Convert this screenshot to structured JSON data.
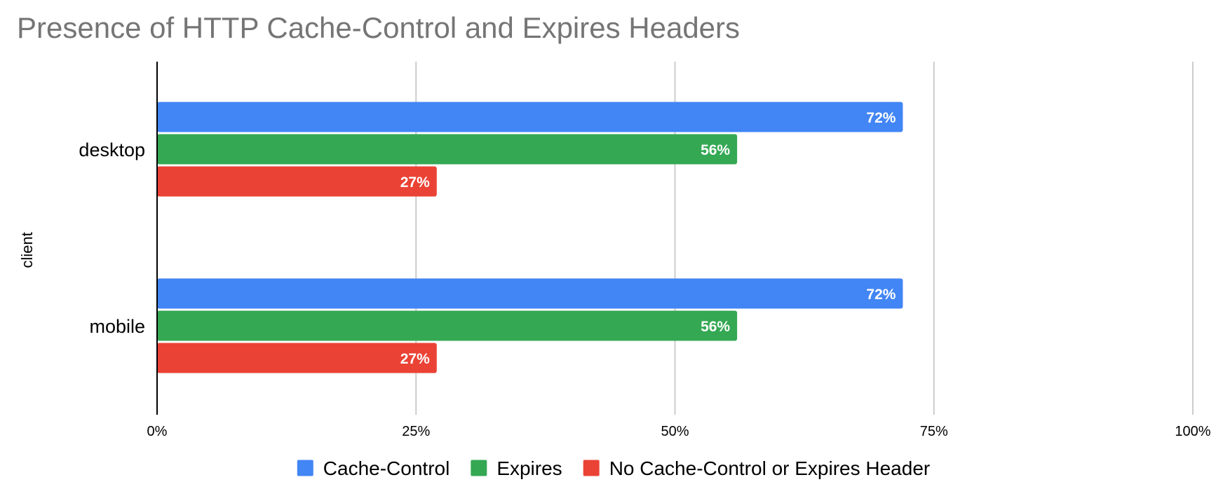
{
  "chart_data": {
    "type": "bar",
    "orientation": "horizontal",
    "title": "Presence of HTTP Cache-Control and Expires Headers",
    "ylabel": "client",
    "xlabel": "",
    "categories": [
      "desktop",
      "mobile"
    ],
    "series": [
      {
        "name": "Cache-Control",
        "color": "#4285f4",
        "values": [
          72,
          72
        ],
        "labels": [
          "72%",
          "72%"
        ]
      },
      {
        "name": "Expires",
        "color": "#34a853",
        "values": [
          56,
          56
        ],
        "labels": [
          "56%",
          "56%"
        ]
      },
      {
        "name": "No Cache-Control or Expires Header",
        "color": "#ea4335",
        "values": [
          27,
          27
        ],
        "labels": [
          "27%",
          "27%"
        ]
      }
    ],
    "xlim": [
      0,
      100
    ],
    "xticks": [
      0,
      25,
      50,
      75,
      100
    ],
    "xtick_labels": [
      "0%",
      "25%",
      "50%",
      "75%",
      "100%"
    ],
    "grid": true,
    "legend_position": "bottom"
  }
}
